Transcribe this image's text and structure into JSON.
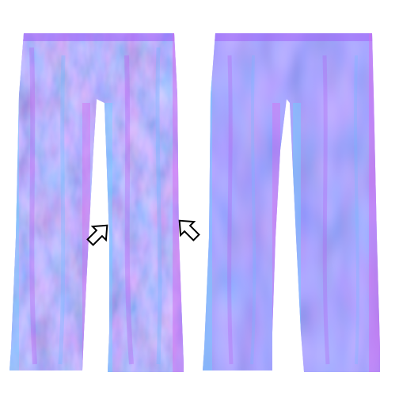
{
  "figure": {
    "panels": [
      {
        "id": "left",
        "subject": "trousers-normal-map",
        "has_wrinkle_detail": "strong"
      },
      {
        "id": "right",
        "subject": "trousers-normal-map",
        "has_wrinkle_detail": "smooth"
      }
    ],
    "arrows": [
      {
        "id": "inner-leg-left",
        "direction": "up-right",
        "icon": "outline-arrow-icon"
      },
      {
        "id": "inner-leg-right",
        "direction": "up-left",
        "icon": "outline-arrow-icon"
      }
    ],
    "colors": {
      "background": "#ffffff",
      "base_blue": "#7f7fff",
      "violet_highlight": "#b45ef0",
      "magenta_highlight": "#d46cf0",
      "cyan_highlight": "#6fb8ff",
      "deep_blue": "#5a5cf5",
      "arrow_stroke": "#000000",
      "arrow_fill": "#ffffff"
    }
  }
}
